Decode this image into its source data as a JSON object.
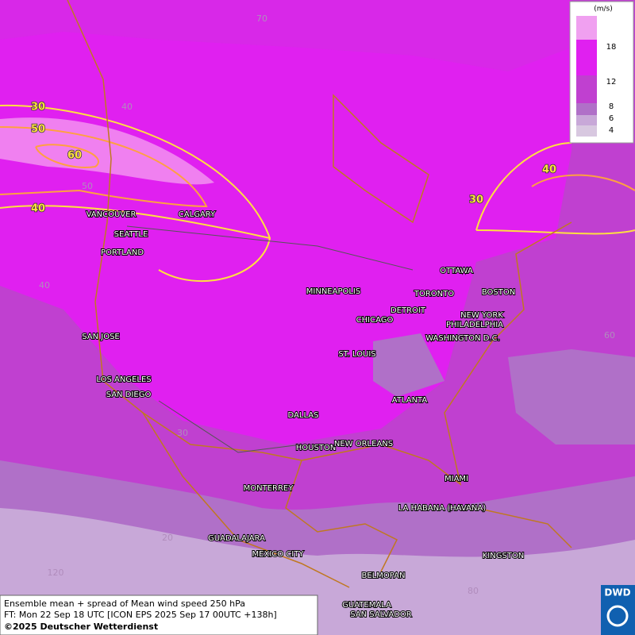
{
  "legend": {
    "unit": "(m/s)",
    "labels": [
      "18",
      "12",
      "8",
      "6",
      "4"
    ]
  },
  "contour_labels": [
    "30",
    "50",
    "60",
    "40",
    "30",
    "40"
  ],
  "grid_labels": [
    "70",
    "40",
    "50",
    "40",
    "60",
    "30",
    "20",
    "120",
    "80"
  ],
  "cities": [
    "VANCOUVER",
    "CALGARY",
    "SEATTLE",
    "PORTLAND",
    "MINNEAPOLIS",
    "TORONTO",
    "OTTAWA",
    "BOSTON",
    "DETROIT",
    "CHICAGO",
    "NEW YORK",
    "PHILADELPHIA",
    "WASHINGTON D.C.",
    "SAN JOSE",
    "ST. LOUIS",
    "LOS ANGELES",
    "SAN DIEGO",
    "ATLANTA",
    "DALLAS",
    "HOUSTON",
    "NEW ORLEANS",
    "MIAMI",
    "MONTERREY",
    "LA HABANA (HAVANA)",
    "GUADALAJARA",
    "MEXICO CITY",
    "KINGSTON",
    "BELMOPAN",
    "GUATEMALA",
    "SAN SALVADOR"
  ],
  "footer": {
    "line1": "Ensemble mean + spread of Mean wind speed 250 hPa",
    "line2": "FT: Mon 22 Sep 18 UTC [ICON EPS 2025 Sep 17 00UTC +138h]",
    "line3": "©2025 Deutscher Wetterdienst"
  },
  "logo": "DWD"
}
